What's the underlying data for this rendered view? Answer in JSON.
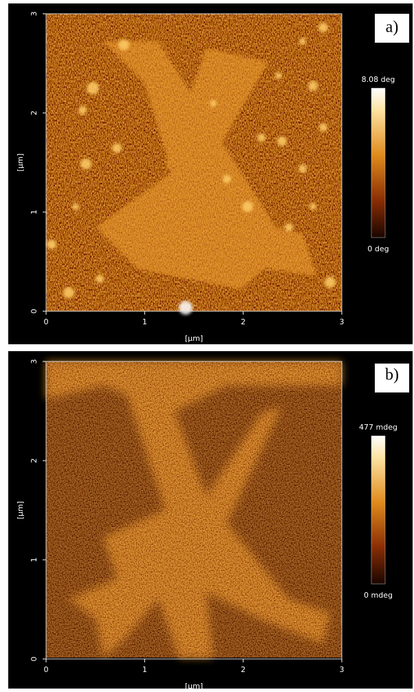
{
  "panels": [
    {
      "label": "a)",
      "x_label": "[µm]",
      "y_label": "[µm]",
      "xticks": [
        0,
        1,
        2,
        3
      ],
      "yticks": [
        0,
        1,
        2,
        3
      ],
      "colorbar_max": "8.08 deg",
      "colorbar_min": "0 deg"
    },
    {
      "label": "b)",
      "x_label": "[µm]",
      "y_label": "[µm]",
      "xticks": [
        0,
        1,
        2,
        3
      ],
      "yticks": [
        0,
        1,
        2,
        3
      ],
      "colorbar_max": "477 mdeg",
      "colorbar_min": "0 mdeg"
    }
  ]
}
